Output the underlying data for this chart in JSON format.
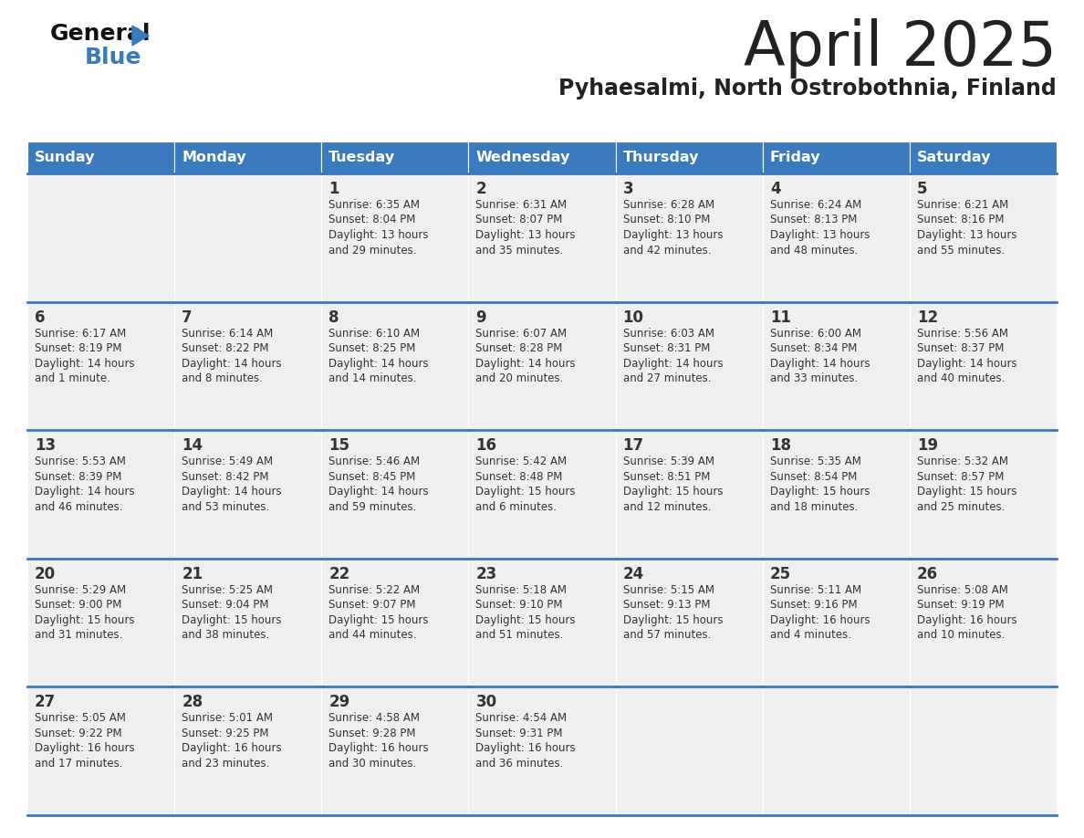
{
  "title": "April 2025",
  "subtitle": "Pyhaesalmi, North Ostrobothnia, Finland",
  "header_color": "#3a7abf",
  "header_text_color": "#ffffff",
  "cell_bg_color": "#efefef",
  "border_color": "#3a7abf",
  "title_color": "#222222",
  "subtitle_color": "#222222",
  "text_color": "#333333",
  "days_of_week": [
    "Sunday",
    "Monday",
    "Tuesday",
    "Wednesday",
    "Thursday",
    "Friday",
    "Saturday"
  ],
  "weeks": [
    [
      {
        "day": "",
        "info": ""
      },
      {
        "day": "",
        "info": ""
      },
      {
        "day": "1",
        "info": "Sunrise: 6:35 AM\nSunset: 8:04 PM\nDaylight: 13 hours\nand 29 minutes."
      },
      {
        "day": "2",
        "info": "Sunrise: 6:31 AM\nSunset: 8:07 PM\nDaylight: 13 hours\nand 35 minutes."
      },
      {
        "day": "3",
        "info": "Sunrise: 6:28 AM\nSunset: 8:10 PM\nDaylight: 13 hours\nand 42 minutes."
      },
      {
        "day": "4",
        "info": "Sunrise: 6:24 AM\nSunset: 8:13 PM\nDaylight: 13 hours\nand 48 minutes."
      },
      {
        "day": "5",
        "info": "Sunrise: 6:21 AM\nSunset: 8:16 PM\nDaylight: 13 hours\nand 55 minutes."
      }
    ],
    [
      {
        "day": "6",
        "info": "Sunrise: 6:17 AM\nSunset: 8:19 PM\nDaylight: 14 hours\nand 1 minute."
      },
      {
        "day": "7",
        "info": "Sunrise: 6:14 AM\nSunset: 8:22 PM\nDaylight: 14 hours\nand 8 minutes."
      },
      {
        "day": "8",
        "info": "Sunrise: 6:10 AM\nSunset: 8:25 PM\nDaylight: 14 hours\nand 14 minutes."
      },
      {
        "day": "9",
        "info": "Sunrise: 6:07 AM\nSunset: 8:28 PM\nDaylight: 14 hours\nand 20 minutes."
      },
      {
        "day": "10",
        "info": "Sunrise: 6:03 AM\nSunset: 8:31 PM\nDaylight: 14 hours\nand 27 minutes."
      },
      {
        "day": "11",
        "info": "Sunrise: 6:00 AM\nSunset: 8:34 PM\nDaylight: 14 hours\nand 33 minutes."
      },
      {
        "day": "12",
        "info": "Sunrise: 5:56 AM\nSunset: 8:37 PM\nDaylight: 14 hours\nand 40 minutes."
      }
    ],
    [
      {
        "day": "13",
        "info": "Sunrise: 5:53 AM\nSunset: 8:39 PM\nDaylight: 14 hours\nand 46 minutes."
      },
      {
        "day": "14",
        "info": "Sunrise: 5:49 AM\nSunset: 8:42 PM\nDaylight: 14 hours\nand 53 minutes."
      },
      {
        "day": "15",
        "info": "Sunrise: 5:46 AM\nSunset: 8:45 PM\nDaylight: 14 hours\nand 59 minutes."
      },
      {
        "day": "16",
        "info": "Sunrise: 5:42 AM\nSunset: 8:48 PM\nDaylight: 15 hours\nand 6 minutes."
      },
      {
        "day": "17",
        "info": "Sunrise: 5:39 AM\nSunset: 8:51 PM\nDaylight: 15 hours\nand 12 minutes."
      },
      {
        "day": "18",
        "info": "Sunrise: 5:35 AM\nSunset: 8:54 PM\nDaylight: 15 hours\nand 18 minutes."
      },
      {
        "day": "19",
        "info": "Sunrise: 5:32 AM\nSunset: 8:57 PM\nDaylight: 15 hours\nand 25 minutes."
      }
    ],
    [
      {
        "day": "20",
        "info": "Sunrise: 5:29 AM\nSunset: 9:00 PM\nDaylight: 15 hours\nand 31 minutes."
      },
      {
        "day": "21",
        "info": "Sunrise: 5:25 AM\nSunset: 9:04 PM\nDaylight: 15 hours\nand 38 minutes."
      },
      {
        "day": "22",
        "info": "Sunrise: 5:22 AM\nSunset: 9:07 PM\nDaylight: 15 hours\nand 44 minutes."
      },
      {
        "day": "23",
        "info": "Sunrise: 5:18 AM\nSunset: 9:10 PM\nDaylight: 15 hours\nand 51 minutes."
      },
      {
        "day": "24",
        "info": "Sunrise: 5:15 AM\nSunset: 9:13 PM\nDaylight: 15 hours\nand 57 minutes."
      },
      {
        "day": "25",
        "info": "Sunrise: 5:11 AM\nSunset: 9:16 PM\nDaylight: 16 hours\nand 4 minutes."
      },
      {
        "day": "26",
        "info": "Sunrise: 5:08 AM\nSunset: 9:19 PM\nDaylight: 16 hours\nand 10 minutes."
      }
    ],
    [
      {
        "day": "27",
        "info": "Sunrise: 5:05 AM\nSunset: 9:22 PM\nDaylight: 16 hours\nand 17 minutes."
      },
      {
        "day": "28",
        "info": "Sunrise: 5:01 AM\nSunset: 9:25 PM\nDaylight: 16 hours\nand 23 minutes."
      },
      {
        "day": "29",
        "info": "Sunrise: 4:58 AM\nSunset: 9:28 PM\nDaylight: 16 hours\nand 30 minutes."
      },
      {
        "day": "30",
        "info": "Sunrise: 4:54 AM\nSunset: 9:31 PM\nDaylight: 16 hours\nand 36 minutes."
      },
      {
        "day": "",
        "info": ""
      },
      {
        "day": "",
        "info": ""
      },
      {
        "day": "",
        "info": ""
      }
    ]
  ],
  "logo_general_color": "#111111",
  "logo_blue_color": "#3a7abf",
  "logo_triangle_color": "#3a7abf"
}
